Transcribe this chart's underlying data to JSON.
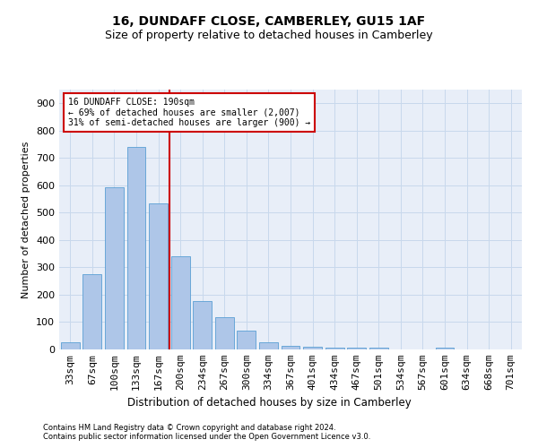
{
  "title": "16, DUNDAFF CLOSE, CAMBERLEY, GU15 1AF",
  "subtitle": "Size of property relative to detached houses in Camberley",
  "xlabel": "Distribution of detached houses by size in Camberley",
  "ylabel": "Number of detached properties",
  "categories": [
    "33sqm",
    "67sqm",
    "100sqm",
    "133sqm",
    "167sqm",
    "200sqm",
    "234sqm",
    "267sqm",
    "300sqm",
    "334sqm",
    "367sqm",
    "401sqm",
    "434sqm",
    "467sqm",
    "501sqm",
    "534sqm",
    "567sqm",
    "601sqm",
    "634sqm",
    "668sqm",
    "701sqm"
  ],
  "values": [
    25,
    275,
    593,
    740,
    535,
    340,
    178,
    118,
    68,
    25,
    13,
    11,
    7,
    5,
    6,
    0,
    0,
    5,
    0,
    0,
    0
  ],
  "bar_color": "#aec6e8",
  "bar_edge_color": "#5a9fd4",
  "grid_color": "#c8d8ec",
  "vline_x": 4.5,
  "vline_color": "#cc0000",
  "annotation_text": "16 DUNDAFF CLOSE: 190sqm\n← 69% of detached houses are smaller (2,007)\n31% of semi-detached houses are larger (900) →",
  "annotation_box_color": "#ffffff",
  "annotation_box_edge": "#cc0000",
  "ylim": [
    0,
    950
  ],
  "yticks": [
    0,
    100,
    200,
    300,
    400,
    500,
    600,
    700,
    800,
    900
  ],
  "footer1": "Contains HM Land Registry data © Crown copyright and database right 2024.",
  "footer2": "Contains public sector information licensed under the Open Government Licence v3.0.",
  "bg_color": "#e8eef8",
  "title_fontsize": 10,
  "subtitle_fontsize": 9
}
